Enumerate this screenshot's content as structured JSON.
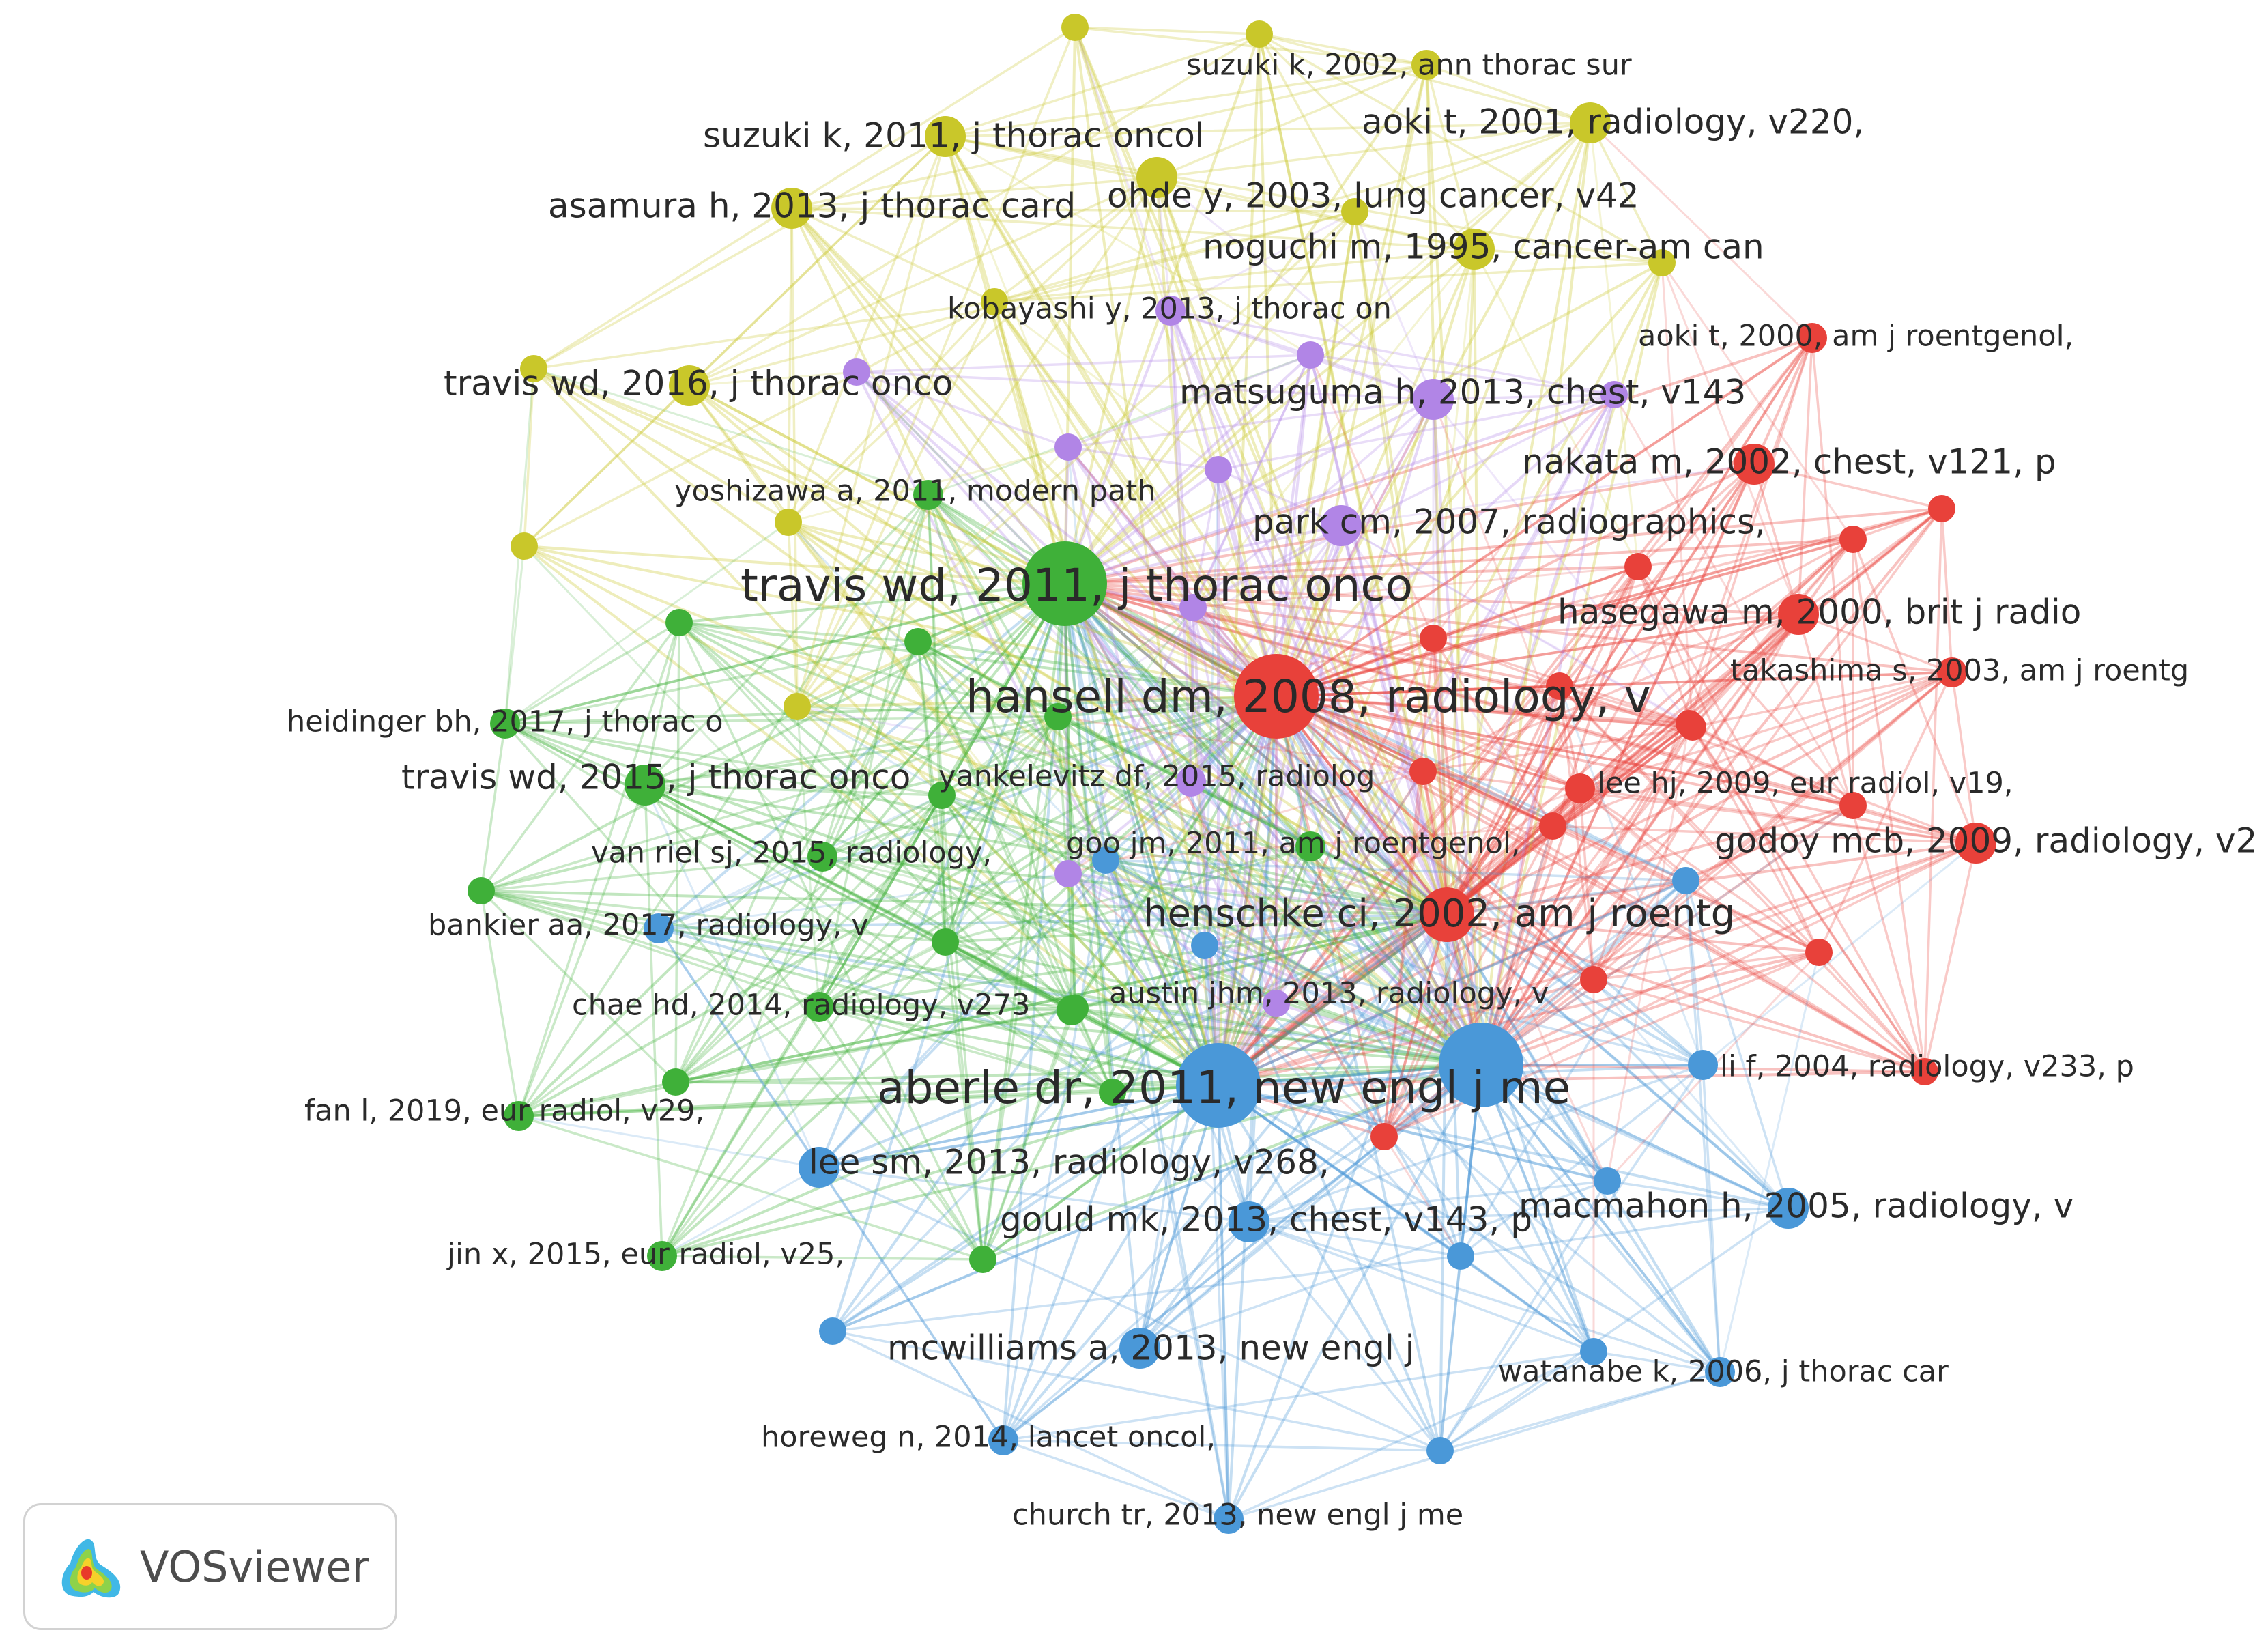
{
  "colors": {
    "red": "#e8413a",
    "green": "#3fb039",
    "blue": "#4a98d8",
    "yellow": "#c9c72a",
    "purple": "#b185e6"
  },
  "nodes": [
    {
      "id": "travis2011",
      "label": "travis wd, 2011, j thorac onco",
      "cluster": "green",
      "size": "xl"
    },
    {
      "id": "hansell2008",
      "label": "hansell dm, 2008, radiology, v",
      "cluster": "red",
      "size": "xl"
    },
    {
      "id": "aberle2011",
      "label": "aberle dr, 2011, new engl j me",
      "cluster": "blue",
      "size": "xl"
    },
    {
      "id": "henschke2002",
      "label": "henschke ci, 2002, am j roentg",
      "cluster": "red",
      "size": "l"
    },
    {
      "id": "macmahon2005",
      "label": "macmahon h, 2005, radiology, v",
      "cluster": "blue",
      "size": "m"
    },
    {
      "id": "naidich",
      "label": "",
      "cluster": "blue",
      "size": "xl"
    },
    {
      "id": "gould2013",
      "label": "gould mk, 2013, chest, v143, p",
      "cluster": "blue",
      "size": "m"
    },
    {
      "id": "leesm2013",
      "label": "lee sm, 2013, radiology, v268,",
      "cluster": "blue",
      "size": "m"
    },
    {
      "id": "mcwilliams2013",
      "label": "mcwilliams a, 2013, new engl j",
      "cluster": "blue",
      "size": "m"
    },
    {
      "id": "horeweg2014",
      "label": "horeweg n, 2014, lancet oncol,",
      "cluster": "blue",
      "size": "s"
    },
    {
      "id": "church2013",
      "label": "church tr, 2013, new engl j me",
      "cluster": "blue",
      "size": "s"
    },
    {
      "id": "watanabe2006",
      "label": "watanabe k, 2006, j thorac car",
      "cluster": "blue",
      "size": "s"
    },
    {
      "id": "lif2004",
      "label": "li f, 2004, radiology, v233, p",
      "cluster": "blue",
      "size": "s"
    },
    {
      "id": "bankier2017",
      "label": "bankier aa, 2017, radiology, v",
      "cluster": "blue",
      "size": "s"
    },
    {
      "id": "austin2013",
      "label": "austin jhm, 2013, radiology, v",
      "cluster": "green",
      "size": "s"
    },
    {
      "id": "chae2014",
      "label": "chae hd, 2014, radiology, v273",
      "cluster": "green",
      "size": "s"
    },
    {
      "id": "fan2019",
      "label": "fan l, 2019, eur radiol, v29,",
      "cluster": "green",
      "size": "s"
    },
    {
      "id": "jin2015",
      "label": "jin x, 2015, eur radiol, v25,",
      "cluster": "green",
      "size": "s"
    },
    {
      "id": "vanriel2015",
      "label": "van riel sj, 2015, radiology,",
      "cluster": "green",
      "size": "s"
    },
    {
      "id": "travis2015",
      "label": "travis wd, 2015, j thorac onco",
      "cluster": "green",
      "size": "m"
    },
    {
      "id": "heidinger2017",
      "label": "heidinger bh, 2017, j thorac o",
      "cluster": "green",
      "size": "s"
    },
    {
      "id": "yankelevitz2015",
      "label": "yankelevitz df, 2015, radiolog",
      "cluster": "purple",
      "size": "s"
    },
    {
      "id": "goo2011",
      "label": "goo jm, 2011, am j roentgenol,",
      "cluster": "green",
      "size": "s"
    },
    {
      "id": "yoshizawa2011",
      "label": "yoshizawa a, 2011, modern path",
      "cluster": "green",
      "size": "s"
    },
    {
      "id": "godoy2009",
      "label": "godoy mcb, 2009, radiology, v2",
      "cluster": "red",
      "size": "m"
    },
    {
      "id": "leehj2009",
      "label": "lee hj, 2009, eur radiol, v19,",
      "cluster": "red",
      "size": "s"
    },
    {
      "id": "takashima2003",
      "label": "takashima s, 2003, am j roentg",
      "cluster": "red",
      "size": "s"
    },
    {
      "id": "hasegawa2000",
      "label": "hasegawa m, 2000, brit j radio",
      "cluster": "red",
      "size": "m"
    },
    {
      "id": "parkcm2007",
      "label": "park cm, 2007, radiographics,",
      "cluster": "purple",
      "size": "m"
    },
    {
      "id": "nakata2002",
      "label": "nakata m, 2002, chest, v121, p",
      "cluster": "red",
      "size": "m"
    },
    {
      "id": "aoki2000",
      "label": "aoki t, 2000, am j roentgenol,",
      "cluster": "red",
      "size": "s"
    },
    {
      "id": "matsuguma2013",
      "label": "matsuguma h, 2013, chest, v143",
      "cluster": "purple",
      "size": "m"
    },
    {
      "id": "kobayashi2013",
      "label": "kobayashi y, 2013, j thorac on",
      "cluster": "purple",
      "size": "s"
    },
    {
      "id": "noguchi1995",
      "label": "noguchi m, 1995, cancer-am can",
      "cluster": "yellow",
      "size": "m"
    },
    {
      "id": "ohde2003",
      "label": "ohde y, 2003, lung cancer, v42",
      "cluster": "yellow",
      "size": "m"
    },
    {
      "id": "aoki2001",
      "label": "aoki t, 2001, radiology, v220,",
      "cluster": "yellow",
      "size": "m"
    },
    {
      "id": "suzuki2002",
      "label": "suzuki k, 2002, ann thorac sur",
      "cluster": "yellow",
      "size": "s"
    },
    {
      "id": "suzuki2011",
      "label": "suzuki k, 2011, j thorac oncol",
      "cluster": "yellow",
      "size": "m"
    },
    {
      "id": "asamura2013",
      "label": "asamura h, 2013, j thorac card",
      "cluster": "yellow",
      "size": "m"
    },
    {
      "id": "travis2016",
      "label": "travis wd, 2016, j thorac onco",
      "cluster": "yellow",
      "size": "m"
    }
  ],
  "brand": {
    "name": "VOSviewer"
  }
}
